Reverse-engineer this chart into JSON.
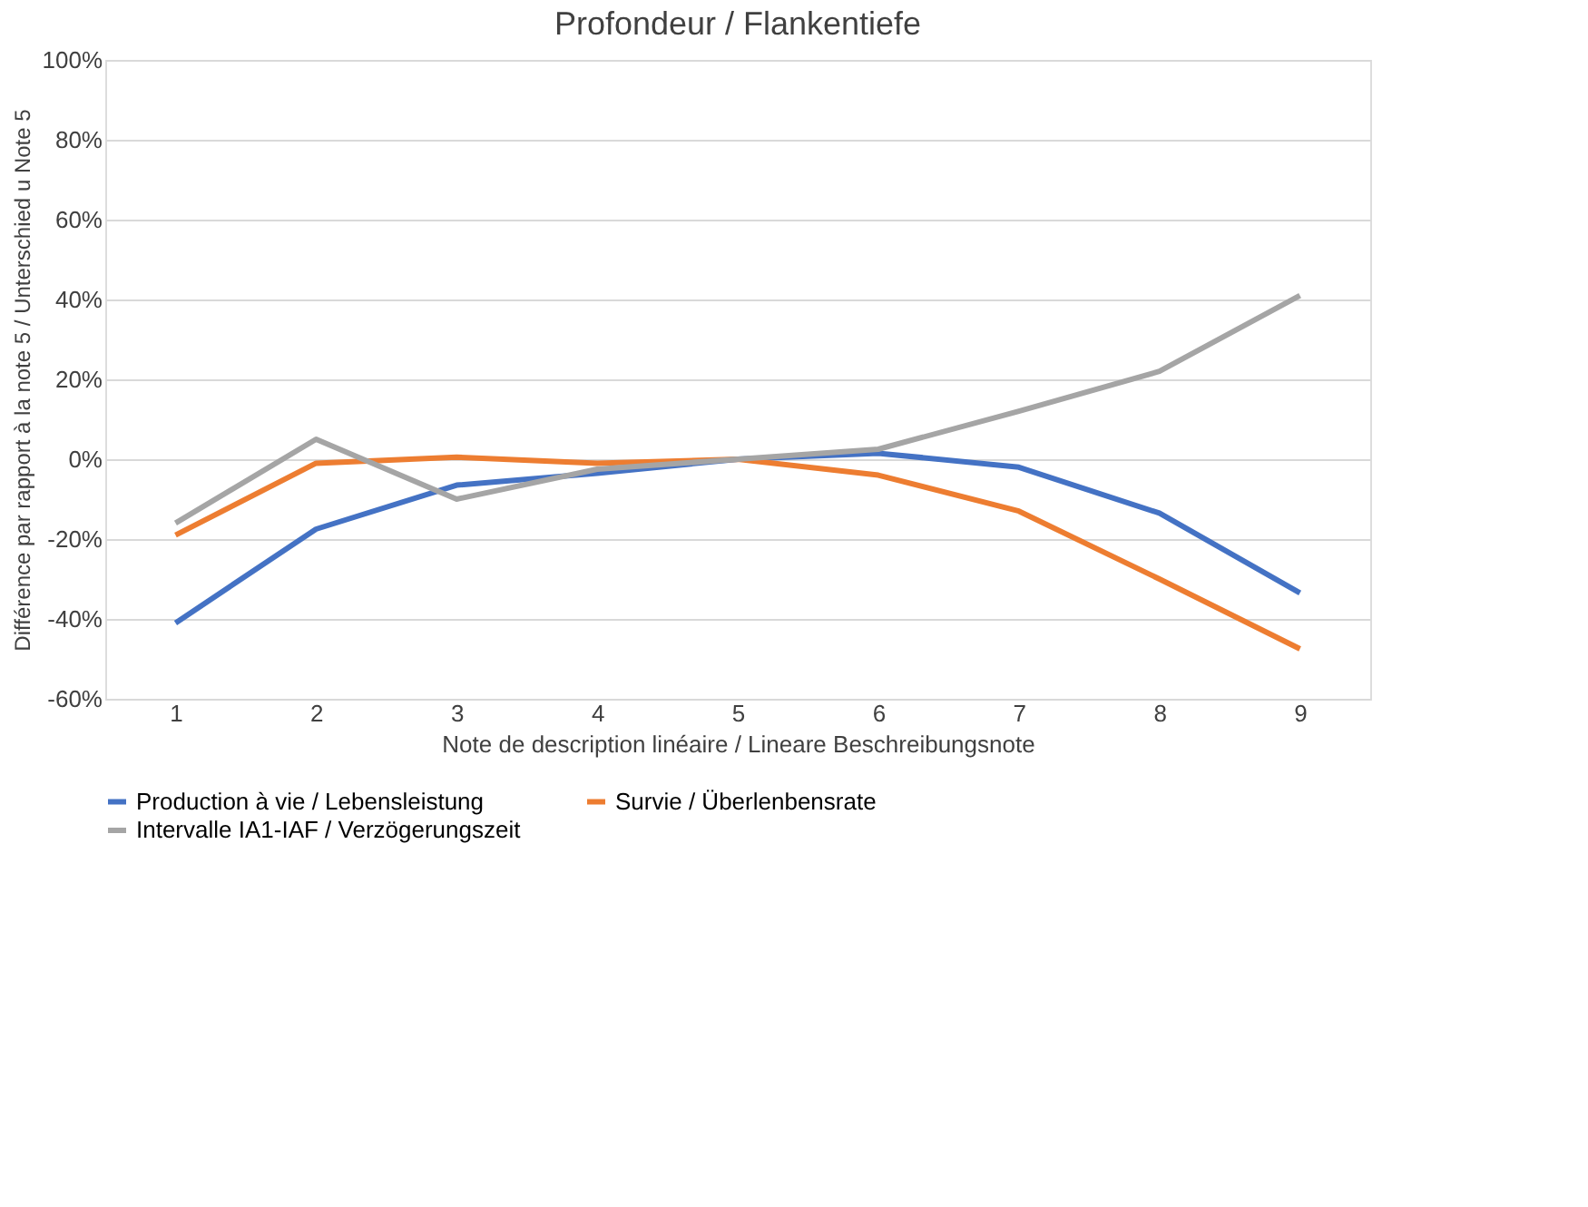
{
  "chart_data": {
    "type": "line",
    "title": "Profondeur / Flankentiefe",
    "xlabel": "Note de description linéaire / Lineare Beschreibungsnote",
    "ylabel": "Différence par rapport à la note 5 / Unterschied u Note 5",
    "categories": [
      "1",
      "2",
      "3",
      "4",
      "5",
      "6",
      "7",
      "8",
      "9"
    ],
    "series": [
      {
        "name": "Production à vie / Lebensleistung",
        "color": "#4472c4",
        "values": [
          -41,
          -17.5,
          -6.5,
          -3.5,
          0,
          1.5,
          -2,
          -13.5,
          -33.5
        ]
      },
      {
        "name": "Survie / Überlenbensrate",
        "color": "#ed7d31",
        "values": [
          -19,
          -1,
          0.5,
          -1,
          0,
          -4,
          -13,
          -30,
          -47.5
        ]
      },
      {
        "name": "Intervalle IA1-IAF / Verzögerungszeit",
        "color": "#a5a5a5",
        "values": [
          -16,
          5,
          -10,
          -2.5,
          0,
          2.5,
          12,
          22,
          41
        ]
      }
    ],
    "ylim": [
      -60,
      100
    ],
    "yticks": [
      {
        "value": -60,
        "label": "-60%"
      },
      {
        "value": -40,
        "label": "-40%"
      },
      {
        "value": -20,
        "label": "-20%"
      },
      {
        "value": 0,
        "label": "0%"
      },
      {
        "value": 20,
        "label": "20%"
      },
      {
        "value": 40,
        "label": "40%"
      },
      {
        "value": 60,
        "label": "60%"
      },
      {
        "value": 80,
        "label": "80%"
      },
      {
        "value": 100,
        "label": "100%"
      }
    ],
    "grid": "y",
    "legend": "bottom",
    "marker": "none",
    "line_style": "solid"
  }
}
